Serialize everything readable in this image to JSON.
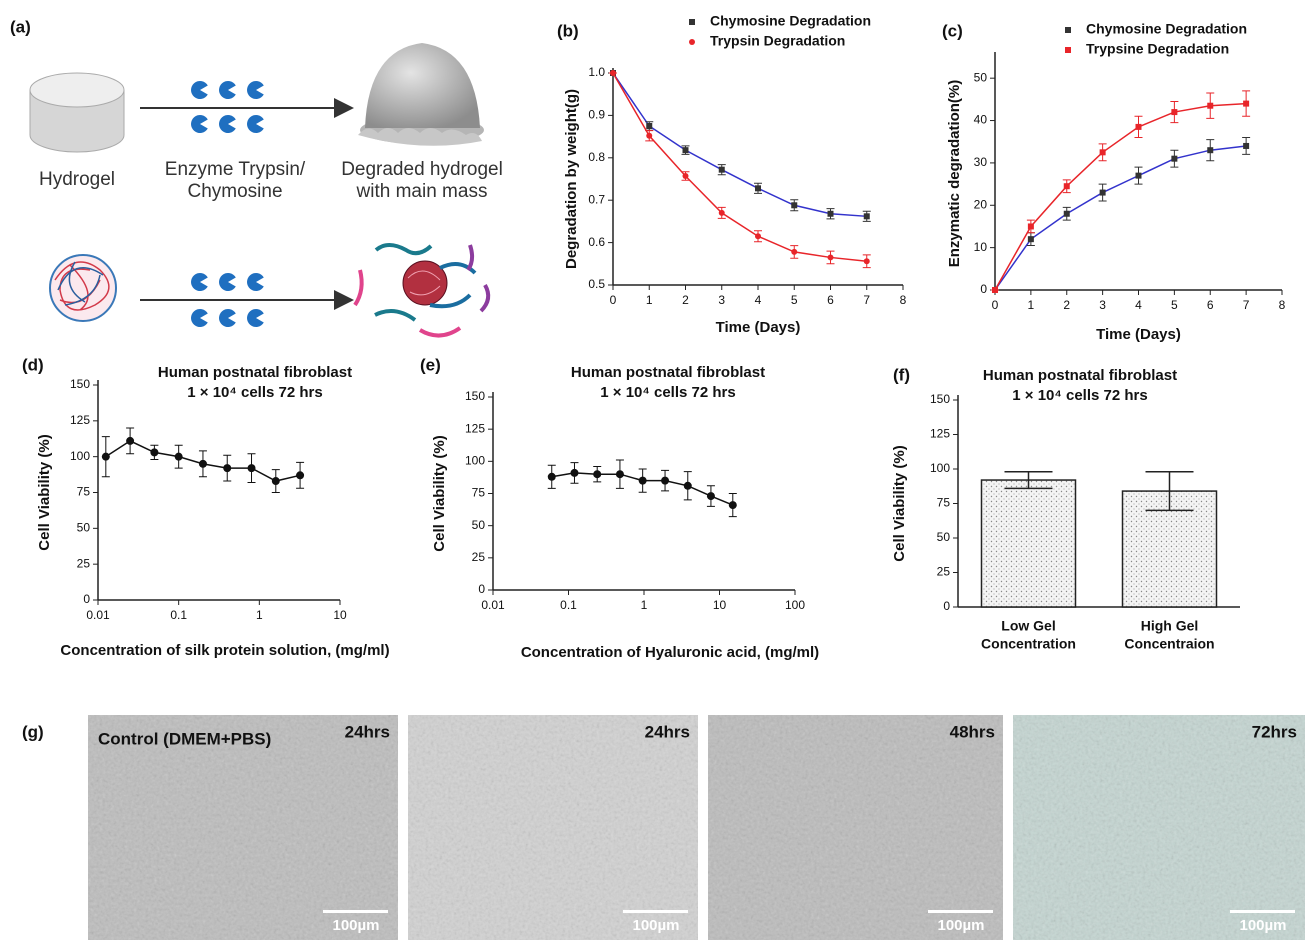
{
  "panel_labels": {
    "a": "(a)",
    "g": "(g)"
  },
  "diagram": {
    "hydrogel": "Hydrogel",
    "enzyme": [
      "Enzyme Trypsin/",
      "Chymosine"
    ],
    "degraded": [
      "Degraded hydrogel",
      "with main mass"
    ]
  },
  "micrographs": [
    {
      "label": "Control (DMEM+PBS)",
      "time": "24hrs",
      "scale": "100µm"
    },
    {
      "time": "24hrs",
      "scale": "100µm"
    },
    {
      "time": "48hrs",
      "scale": "100µm"
    },
    {
      "time": "72hrs",
      "scale": "100µm"
    }
  ],
  "chart_data": [
    {
      "type": "line",
      "panel": "(b)",
      "xlabel": "Time (Days)",
      "ylabel": "Degradation by weight(g)",
      "xlim": [
        0,
        8
      ],
      "xticks": [
        0,
        1,
        2,
        3,
        4,
        5,
        6,
        7,
        8
      ],
      "ylim": [
        0.5,
        1.0
      ],
      "yticks": [
        0.5,
        0.6,
        0.7,
        0.8,
        0.9,
        {
          "value": 1.0,
          "label": "1.0"
        }
      ],
      "series": [
        {
          "name": "Chymosine Degradation",
          "color": "#333333",
          "line_color": "#3333cc",
          "marker": "square",
          "x": [
            0,
            1,
            2,
            3,
            4,
            5,
            6,
            7
          ],
          "values": [
            1.0,
            0.875,
            0.818,
            0.772,
            0.728,
            0.688,
            0.668,
            0.662
          ],
          "errors": [
            0,
            0.01,
            0.01,
            0.012,
            0.012,
            0.013,
            0.012,
            0.012
          ]
        },
        {
          "name": "Trypsin Degradation",
          "color": "#e8252a",
          "line_color": "#e8252a",
          "marker": "circle",
          "x": [
            0,
            1,
            2,
            3,
            4,
            5,
            6,
            7
          ],
          "values": [
            1.0,
            0.852,
            0.757,
            0.67,
            0.615,
            0.578,
            0.565,
            0.556
          ],
          "errors": [
            0,
            0.012,
            0.01,
            0.013,
            0.013,
            0.015,
            0.015,
            0.015
          ]
        }
      ]
    },
    {
      "type": "line",
      "panel": "(c)",
      "xlabel": "Time (Days)",
      "ylabel": "Enzymatic degradation(%)",
      "xlim": [
        0,
        8
      ],
      "xticks": [
        0,
        1,
        2,
        3,
        4,
        5,
        6,
        7,
        8
      ],
      "ylim": [
        0,
        55
      ],
      "yticks": [
        0,
        10,
        20,
        30,
        40,
        50
      ],
      "series": [
        {
          "name": "Chymosine Degradation",
          "color": "#333333",
          "line_color": "#3333cc",
          "marker": "square",
          "x": [
            0,
            1,
            2,
            3,
            4,
            5,
            6,
            7
          ],
          "values": [
            0,
            12,
            18,
            23,
            27,
            31,
            33,
            34
          ],
          "errors": [
            0,
            1.5,
            1.5,
            2,
            2,
            2,
            2.5,
            2
          ]
        },
        {
          "name": "Trypsine Degradation",
          "color": "#e8252a",
          "line_color": "#e8252a",
          "marker": "square",
          "x": [
            0,
            1,
            2,
            3,
            4,
            5,
            6,
            7
          ],
          "values": [
            0,
            15,
            24.5,
            32.5,
            38.5,
            42,
            43.5,
            44
          ],
          "errors": [
            0,
            1.5,
            1.5,
            2,
            2.5,
            2.5,
            3,
            3
          ]
        }
      ]
    },
    {
      "type": "line",
      "panel": "(d)",
      "title": [
        "Human postnatal fibroblast",
        "1 × 10⁴ cells 72 hrs"
      ],
      "xlabel": "Concentration of silk protein solution, (mg/ml)",
      "ylabel": "Cell Viability (%)",
      "log_x": true,
      "xlim": [
        0.01,
        10
      ],
      "xticks": [
        0.01,
        0.1,
        1,
        10
      ],
      "ylim": [
        0,
        150
      ],
      "yticks": [
        0,
        25,
        50,
        75,
        100,
        125,
        150
      ],
      "series": [
        {
          "color": "#111111",
          "line_color": "#111111",
          "marker": "dot",
          "x": [
            0.0125,
            0.025,
            0.05,
            0.1,
            0.2,
            0.4,
            0.8,
            1.6,
            3.2
          ],
          "values": [
            100,
            111,
            103,
            100,
            95,
            92,
            92,
            83,
            87
          ],
          "errors": [
            14,
            9,
            5,
            8,
            9,
            9,
            10,
            8,
            9
          ]
        }
      ]
    },
    {
      "type": "line",
      "panel": "(e)",
      "title": [
        "Human postnatal fibroblast",
        "1 × 10⁴ cells 72 hrs"
      ],
      "xlabel": "Concentration of Hyaluronic acid, (mg/ml)",
      "ylabel": "Cell Viability (%)",
      "log_x": true,
      "xlim": [
        0.01,
        100
      ],
      "xticks": [
        0.01,
        0.1,
        1,
        10,
        100
      ],
      "ylim": [
        0,
        150
      ],
      "yticks": [
        0,
        25,
        50,
        75,
        100,
        125,
        150
      ],
      "series": [
        {
          "color": "#111111",
          "line_color": "#111111",
          "marker": "dot",
          "x": [
            0.06,
            0.12,
            0.24,
            0.48,
            0.96,
            1.9,
            3.8,
            7.7,
            15
          ],
          "values": [
            88,
            91,
            90,
            90,
            85,
            85,
            81,
            73,
            66
          ],
          "errors": [
            9,
            8,
            6,
            11,
            9,
            8,
            11,
            8,
            9
          ]
        }
      ]
    },
    {
      "type": "bar",
      "panel": "(f)",
      "title": [
        "Human postnatal fibroblast",
        "1 × 10⁴ cells 72 hrs"
      ],
      "ylabel": "Cell Viability (%)",
      "categories": [
        [
          "Low Gel",
          "Concentration"
        ],
        [
          "High Gel",
          "Concentraion"
        ]
      ],
      "values": [
        92,
        84
      ],
      "errors": [
        6,
        14
      ],
      "color": "#f2f2f2",
      "ylim": [
        0,
        150
      ],
      "yticks": [
        0,
        25,
        50,
        75,
        100,
        125,
        150
      ]
    }
  ]
}
